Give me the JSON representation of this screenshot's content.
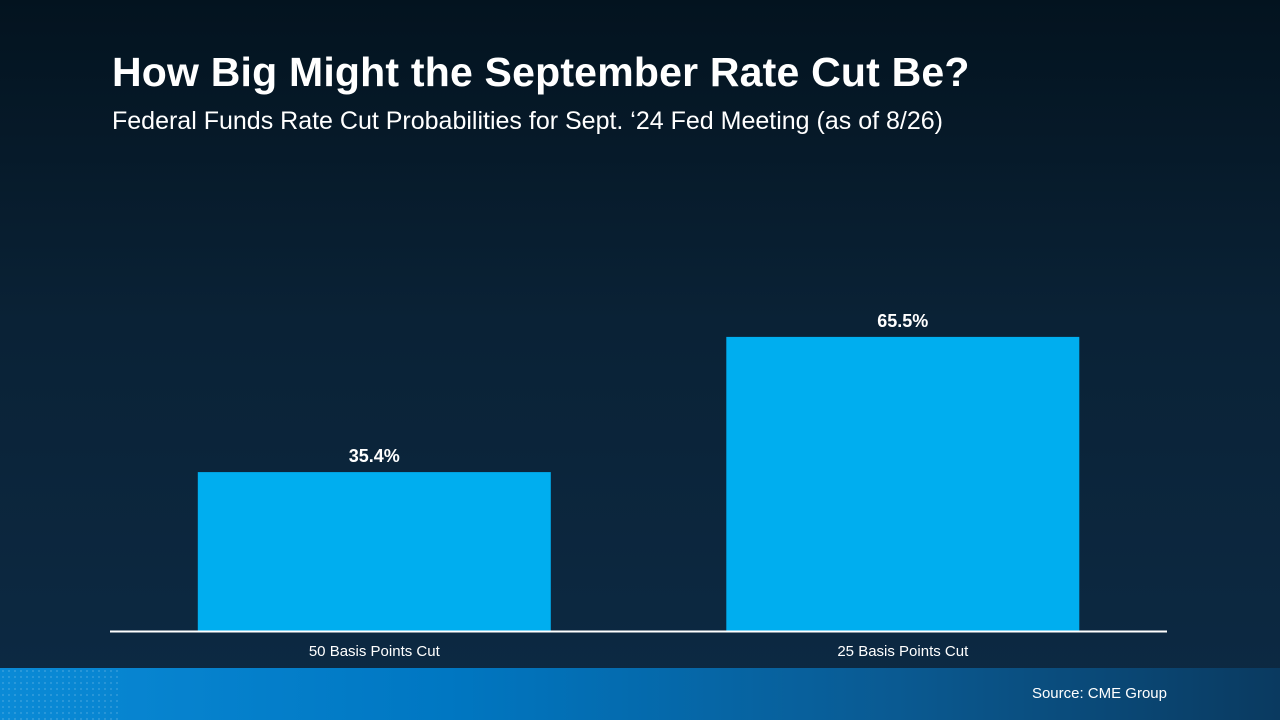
{
  "header": {
    "title": "How Big Might the September Rate Cut Be?",
    "subtitle": "Federal Funds Rate Cut Probabilities for Sept. ‘24 Fed Meeting (as of 8/26)"
  },
  "footer": {
    "source": "Source: CME Group"
  },
  "colors": {
    "bar": "#00aeef",
    "axis": "#ffffff"
  },
  "chart_data": {
    "type": "bar",
    "title": "How Big Might the September Rate Cut Be?",
    "subtitle": "Federal Funds Rate Cut Probabilities for Sept. ‘24 Fed Meeting (as of 8/26)",
    "categories": [
      "50 Basis Points Cut",
      "25 Basis Points Cut"
    ],
    "values": [
      35.4,
      65.5
    ],
    "value_labels": [
      "35.4%",
      "65.5%"
    ],
    "xlabel": "",
    "ylabel": "",
    "ylim": [
      0,
      100
    ],
    "grid": false,
    "legend": "none"
  }
}
